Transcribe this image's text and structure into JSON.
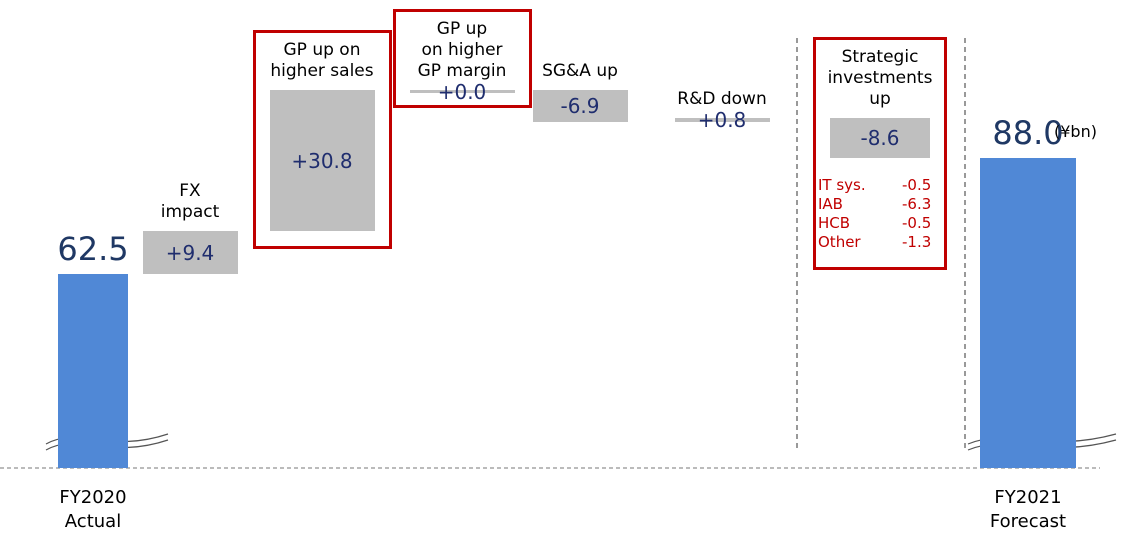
{
  "chart_data": {
    "type": "waterfall",
    "categories": [
      "FY2020\nActual",
      "FX\nimpact",
      "GP up on\nhigher sales",
      "GP up\non higher\nGP margin",
      "SG&A up",
      "R&D down",
      "Strategic\ninvestments\nup",
      "FY2021\nForecast"
    ],
    "measure": [
      "absolute",
      "relative",
      "relative",
      "relative",
      "relative",
      "relative",
      "relative",
      "total"
    ],
    "values": [
      62.5,
      9.4,
      30.8,
      0.0,
      -6.9,
      0.8,
      -8.6,
      88.0
    ],
    "value_labels": [
      "62.5",
      "+9.4",
      "+30.8",
      "+0.0",
      "-6.9",
      "+0.8",
      "-8.6",
      "88.0"
    ],
    "highlight": [
      false,
      false,
      true,
      true,
      false,
      false,
      true,
      false
    ],
    "breakdown": [
      {
        "name": "IT sys.",
        "value": -0.5
      },
      {
        "name": "IAB",
        "value": -6.3
      },
      {
        "name": "HCB",
        "value": -0.5
      },
      {
        "name": "Other",
        "value": -1.3
      }
    ],
    "unit_label": "(¥bn)",
    "ylim": [
      20,
      105
    ],
    "total_color": "#5088d6",
    "step_color": "#bfbfbf",
    "highlight_color": "#c00000"
  }
}
